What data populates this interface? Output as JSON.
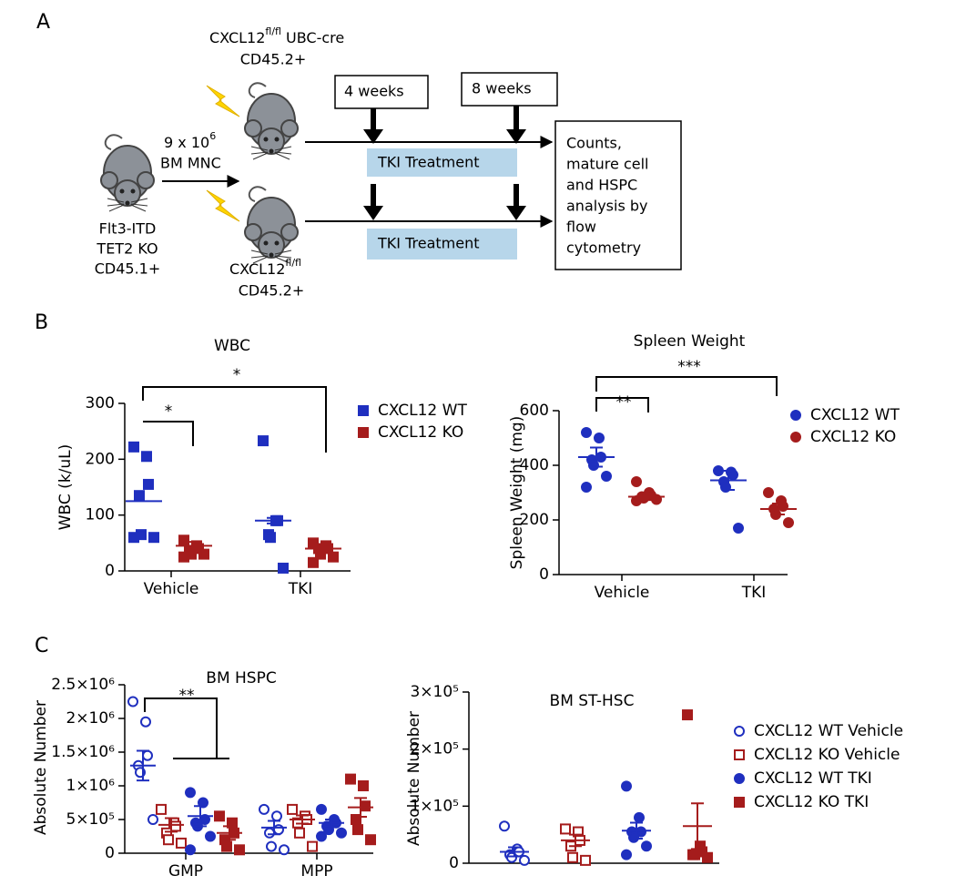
{
  "panel_labels": [
    "A",
    "B",
    "C"
  ],
  "diagram": {
    "donor": [
      "Flt3-ITD",
      "TET2 KO",
      "CD45.1+"
    ],
    "transfer": {
      "base": "9 x 10",
      "exp": "6",
      "cells": "BM MNC"
    },
    "recipient_top": {
      "gene": "CXCL12",
      "sup": "fl/fl",
      "rest": "UBC-cre",
      "marker": "CD45.2+"
    },
    "recipient_bottom": {
      "gene": "CXCL12",
      "sup": "fl/fl",
      "marker": "CD45.2+"
    },
    "timepoints": [
      "4 weeks",
      "8 weeks"
    ],
    "treatment": [
      "TKI Treatment",
      "TKI Treatment"
    ],
    "readout": [
      "Counts,",
      "mature cell",
      "and HSPC",
      "analysis by",
      "flow",
      "cytometry"
    ]
  },
  "chart_data": [
    {
      "type": "dot",
      "title": "WBC",
      "ylabel": "WBC (k/uL)",
      "categories": [
        "Vehicle",
        "TKI"
      ],
      "ylim": [
        0,
        300
      ],
      "yticks": [
        0,
        100,
        200,
        300
      ],
      "legend": true,
      "annotations": [
        "*",
        "*"
      ],
      "series": [
        {
          "name": "CXCL12 WT",
          "color": "#1f2fbf",
          "marker": "square",
          "filled": true,
          "values": [
            [
              222,
              205,
              155,
              135,
              65,
              60,
              60
            ],
            [
              233,
              90,
              90,
              65,
              60,
              5
            ]
          ],
          "mean": [
            125,
            90
          ],
          "sem": [
            null,
            5
          ]
        },
        {
          "name": "CXCL12 KO",
          "color": "#a51c1c",
          "marker": "square",
          "filled": true,
          "values": [
            [
              55,
              45,
              40,
              35,
              30,
              30,
              25
            ],
            [
              50,
              45,
              40,
              40,
              30,
              25,
              15
            ]
          ],
          "mean": [
            45,
            40
          ],
          "sem": [
            7,
            7
          ]
        }
      ]
    },
    {
      "type": "dot",
      "title": "Spleen Weight",
      "ylabel": "Spleen Weight (mg)",
      "categories": [
        "Vehicle",
        "TKI"
      ],
      "ylim": [
        0,
        600
      ],
      "yticks": [
        0,
        200,
        400,
        600
      ],
      "legend": true,
      "annotations": [
        "**",
        "***"
      ],
      "series": [
        {
          "name": "CXCL12 WT",
          "color": "#1f2fbf",
          "marker": "circle",
          "filled": true,
          "values": [
            [
              520,
              500,
              430,
              420,
              400,
              360,
              320
            ],
            [
              380,
              375,
              365,
              340,
              320,
              170
            ]
          ],
          "mean": [
            430,
            345
          ],
          "sem": [
            35,
            35
          ]
        },
        {
          "name": "CXCL12 KO",
          "color": "#a51c1c",
          "marker": "circle",
          "filled": true,
          "values": [
            [
              340,
              300,
              290,
              285,
              280,
              275,
              270
            ],
            [
              300,
              270,
              250,
              240,
              220,
              190
            ]
          ],
          "mean": [
            285,
            240
          ],
          "sem": [
            12,
            20
          ]
        }
      ]
    },
    {
      "type": "dot",
      "title": "BM HSPC",
      "ylabel": "Absolute Number",
      "categories": [
        "GMP",
        "MPP"
      ],
      "ylim": [
        0,
        2500000
      ],
      "yticks": [
        0,
        {
          "value": 500000,
          "label": "5×10⁵"
        },
        {
          "value": 1000000,
          "label": "1×10⁶"
        },
        {
          "value": 1500000,
          "label": "1.5×10⁶"
        },
        {
          "value": 2000000,
          "label": "2×10⁶"
        },
        {
          "value": 2500000,
          "label": "2.5×10⁶"
        }
      ],
      "legend": false,
      "annotations": [
        "**"
      ],
      "series": [
        {
          "name": "CXCL12 WT Vehicle",
          "color": "#1f2fbf",
          "marker": "circle",
          "filled": false,
          "values": [
            [
              2250000,
              1950000,
              1450000,
              1300000,
              1200000,
              500000
            ],
            [
              650000,
              550000,
              350000,
              300000,
              100000,
              50000
            ]
          ],
          "mean": [
            1300000,
            380000
          ],
          "sem": [
            220000,
            100000
          ]
        },
        {
          "name": "CXCL12 KO Vehicle",
          "color": "#a51c1c",
          "marker": "square",
          "filled": false,
          "values": [
            [
              650000,
              450000,
              400000,
              300000,
              200000,
              150000
            ],
            [
              650000,
              550000,
              500000,
              450000,
              300000,
              100000
            ]
          ],
          "mean": [
            420000,
            500000
          ],
          "sem": [
            100000,
            60000
          ]
        },
        {
          "name": "CXCL12 WT TKI",
          "color": "#1f2fbf",
          "marker": "circle",
          "filled": true,
          "values": [
            [
              900000,
              750000,
              500000,
              450000,
              400000,
              250000,
              50000
            ],
            [
              650000,
              500000,
              450000,
              400000,
              350000,
              300000,
              250000
            ]
          ],
          "mean": [
            550000,
            450000
          ],
          "sem": [
            150000,
            50000
          ]
        },
        {
          "name": "CXCL12 KO TKI",
          "color": "#a51c1c",
          "marker": "square",
          "filled": true,
          "values": [
            [
              550000,
              450000,
              300000,
              200000,
              100000,
              50000
            ],
            [
              1100000,
              1000000,
              700000,
              500000,
              350000,
              200000
            ]
          ],
          "mean": [
            300000,
            680000
          ],
          "sem": [
            100000,
            140000
          ]
        }
      ]
    },
    {
      "type": "dot",
      "title": "BM ST-HSC",
      "ylabel": "Absolute Number",
      "categories": [
        null
      ],
      "ylim": [
        0,
        300000
      ],
      "yticks": [
        0,
        {
          "value": 100000,
          "label": "1×10⁵"
        },
        {
          "value": 200000,
          "label": "2×10⁵"
        },
        {
          "value": 300000,
          "label": "3×10⁵"
        }
      ],
      "legend": true,
      "annotations": [],
      "series": [
        {
          "name": "CXCL12 WT Vehicle",
          "color": "#1f2fbf",
          "marker": "circle",
          "filled": false,
          "values": [
            [
              65000,
              25000,
              20000,
              15000,
              10000,
              5000
            ]
          ],
          "mean": [
            20000
          ],
          "sem": [
            8000
          ]
        },
        {
          "name": "CXCL12 KO Vehicle",
          "color": "#a51c1c",
          "marker": "square",
          "filled": false,
          "values": [
            [
              60000,
              55000,
              40000,
              30000,
              10000,
              5000
            ]
          ],
          "mean": [
            40000
          ],
          "sem": [
            10000
          ]
        },
        {
          "name": "CXCL12 WT TKI",
          "color": "#1f2fbf",
          "marker": "circle",
          "filled": true,
          "values": [
            [
              135000,
              80000,
              55000,
              55000,
              45000,
              30000,
              15000
            ]
          ],
          "mean": [
            57000
          ],
          "sem": [
            14000
          ]
        },
        {
          "name": "CXCL12 KO TKI",
          "color": "#a51c1c",
          "marker": "square",
          "filled": true,
          "values": [
            [
              260000,
              30000,
              20000,
              15000,
              15000,
              10000
            ]
          ],
          "mean": [
            65000
          ],
          "sem": [
            40000
          ]
        }
      ]
    }
  ]
}
